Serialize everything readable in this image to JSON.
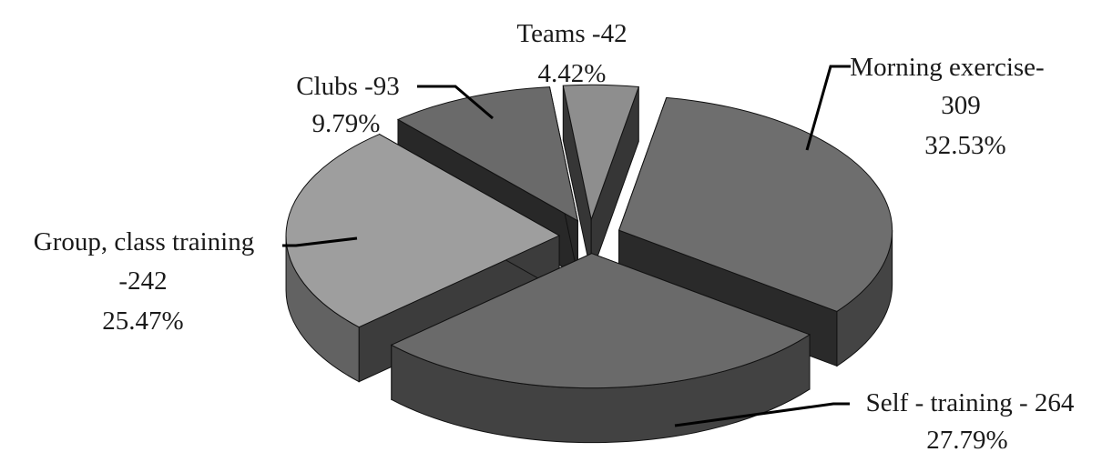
{
  "chart_data": {
    "type": "pie",
    "title": "",
    "three_d": true,
    "exploded": true,
    "legend": "none",
    "slices": [
      {
        "name": "Morning exercise",
        "value": 309,
        "percent": "32.53%",
        "label_line1": "Morning exercise-",
        "label_line2": "309",
        "label_pct": "32.53%",
        "color": "#6e6e6e"
      },
      {
        "name": "Self - training",
        "value": 264,
        "percent": "27.79%",
        "label_line1": "Self - training - 264",
        "label_pct": "27.79%",
        "color": "#6a6a6a"
      },
      {
        "name": "Group, class training",
        "value": 242,
        "percent": "25.47%",
        "label_line1": "Group, class training",
        "label_line2": "-242",
        "label_pct": "25.47%",
        "color": "#9e9e9e"
      },
      {
        "name": "Clubs",
        "value": 93,
        "percent": "9.79%",
        "label_line1": "Clubs -93",
        "label_pct": "9.79%",
        "color": "#6a6a6a"
      },
      {
        "name": "Teams",
        "value": 42,
        "percent": "4.42%",
        "label_line1": "Teams -42",
        "label_pct": "4.42%",
        "color": "#8e8e8e"
      }
    ]
  }
}
